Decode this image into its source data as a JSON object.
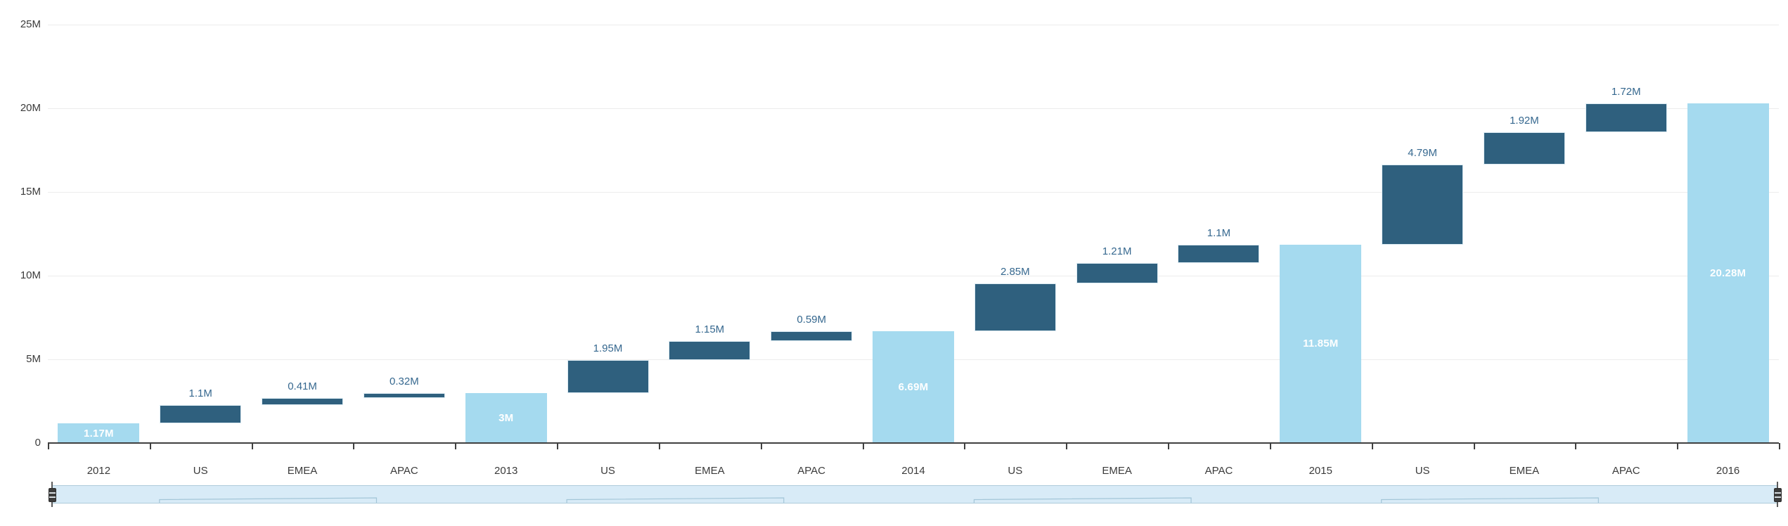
{
  "chart_data": {
    "type": "bar",
    "subtype": "waterfall",
    "title": "",
    "xlabel": "",
    "ylabel": "",
    "unit": "M",
    "ylim": [
      0,
      25
    ],
    "grid": true,
    "categories": [
      "2012",
      "US",
      "EMEA",
      "APAC",
      "2013",
      "US",
      "EMEA",
      "APAC",
      "2014",
      "US",
      "EMEA",
      "APAC",
      "2015",
      "US",
      "EMEA",
      "APAC",
      "2016"
    ],
    "values": [
      1.17,
      1.1,
      0.41,
      0.32,
      3,
      1.95,
      1.15,
      0.59,
      6.69,
      2.85,
      1.21,
      1.1,
      11.85,
      4.79,
      1.92,
      1.72,
      20.28
    ],
    "bar_kinds": [
      "total",
      "delta",
      "delta",
      "delta",
      "total",
      "delta",
      "delta",
      "delta",
      "total",
      "delta",
      "delta",
      "delta",
      "total",
      "delta",
      "delta",
      "delta",
      "total"
    ],
    "value_labels": [
      "1.17M",
      "1.1M",
      "0.41M",
      "0.32M",
      "3M",
      "1.95M",
      "1.15M",
      "0.59M",
      "6.69M",
      "2.85M",
      "1.21M",
      "1.1M",
      "11.85M",
      "4.79M",
      "1.92M",
      "1.72M",
      "20.28M"
    ],
    "y_ticks": [
      {
        "value": 0,
        "label": "0"
      },
      {
        "value": 5,
        "label": "5M"
      },
      {
        "value": 10,
        "label": "10M"
      },
      {
        "value": 15,
        "label": "15M"
      },
      {
        "value": 20,
        "label": "20M"
      },
      {
        "value": 25,
        "label": "25M"
      }
    ],
    "colors": {
      "total_bar": "#A5DAEF",
      "delta_bar": "#2F607E",
      "total_label": "#FFFFFF",
      "delta_label": "#36688F",
      "grid": "#ececec",
      "axis": "#404040",
      "axis_text": "#3b3b3b"
    },
    "legend": null
  },
  "navigator": {
    "track_fill": "#D8EBF7",
    "track_border": "#aecbdb",
    "preview_stroke": "#a3c6d8",
    "handle_color": "#3d3d3d"
  }
}
